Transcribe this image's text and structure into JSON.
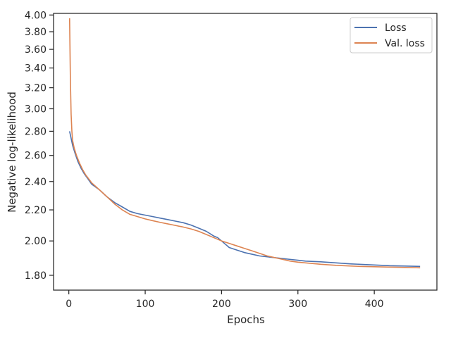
{
  "chart_data": {
    "type": "line",
    "title": "",
    "xlabel": "Epochs",
    "ylabel": "Negative log-likelihood",
    "xlim": [
      -20,
      482
    ],
    "ylim": [
      1.72,
      4.02
    ],
    "yscale": "log",
    "grid": false,
    "legend_position": "top-right",
    "x_ticks": [
      0,
      100,
      200,
      300,
      400
    ],
    "x_tick_labels": [
      "0",
      "100",
      "200",
      "300",
      "400"
    ],
    "y_ticks": [
      1.8,
      2.0,
      2.2,
      2.4,
      2.6,
      2.8,
      3.0,
      3.2,
      3.4,
      3.6,
      3.8,
      4.0
    ],
    "y_tick_labels": [
      "1.80",
      "2.00",
      "2.20",
      "2.40",
      "2.60",
      "2.80",
      "3.00",
      "3.20",
      "3.40",
      "3.60",
      "3.80",
      "4.00"
    ],
    "series": [
      {
        "name": "Loss",
        "color": "#4c72b0",
        "x": [
          1,
          3,
          5,
          8,
          12,
          16,
          20,
          25,
          30,
          40,
          50,
          60,
          70,
          80,
          90,
          100,
          110,
          120,
          130,
          140,
          150,
          160,
          170,
          180,
          190,
          195,
          200,
          205,
          210,
          220,
          230,
          240,
          250,
          260,
          270,
          280,
          290,
          300,
          310,
          320,
          330,
          340,
          350,
          360,
          370,
          380,
          390,
          400,
          410,
          420,
          430,
          440,
          450,
          460
        ],
        "y": [
          2.8,
          2.74,
          2.68,
          2.62,
          2.55,
          2.5,
          2.46,
          2.42,
          2.38,
          2.34,
          2.29,
          2.25,
          2.22,
          2.19,
          2.175,
          2.165,
          2.155,
          2.145,
          2.135,
          2.125,
          2.115,
          2.1,
          2.08,
          2.06,
          2.03,
          2.02,
          2.0,
          1.98,
          1.96,
          1.945,
          1.93,
          1.92,
          1.91,
          1.905,
          1.9,
          1.895,
          1.89,
          1.885,
          1.88,
          1.878,
          1.876,
          1.873,
          1.87,
          1.867,
          1.864,
          1.862,
          1.86,
          1.858,
          1.856,
          1.854,
          1.853,
          1.852,
          1.851,
          1.85
        ]
      },
      {
        "name": "Val. loss",
        "color": "#dd8452",
        "x": [
          1,
          2,
          3,
          4,
          5,
          7,
          10,
          14,
          18,
          22,
          26,
          30,
          40,
          50,
          60,
          70,
          80,
          90,
          100,
          110,
          120,
          130,
          140,
          150,
          160,
          170,
          180,
          190,
          200,
          210,
          220,
          230,
          240,
          250,
          260,
          270,
          280,
          290,
          300,
          310,
          320,
          330,
          340,
          350,
          360,
          370,
          380,
          390,
          400,
          410,
          420,
          430,
          440,
          450,
          460
        ],
        "y": [
          3.96,
          3.3,
          2.95,
          2.8,
          2.72,
          2.66,
          2.6,
          2.54,
          2.49,
          2.45,
          2.42,
          2.39,
          2.34,
          2.29,
          2.24,
          2.2,
          2.17,
          2.155,
          2.14,
          2.128,
          2.117,
          2.107,
          2.097,
          2.087,
          2.075,
          2.06,
          2.04,
          2.02,
          2.0,
          1.985,
          1.97,
          1.955,
          1.94,
          1.925,
          1.91,
          1.9,
          1.89,
          1.88,
          1.874,
          1.87,
          1.866,
          1.862,
          1.859,
          1.856,
          1.854,
          1.852,
          1.85,
          1.849,
          1.848,
          1.847,
          1.846,
          1.845,
          1.844,
          1.843,
          1.842
        ]
      }
    ]
  }
}
